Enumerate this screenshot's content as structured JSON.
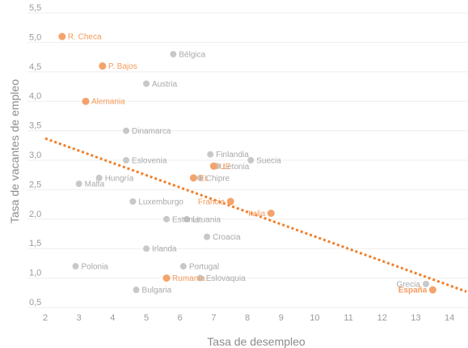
{
  "chart_data": {
    "type": "scatter",
    "xlabel": "Tasa de desempleo",
    "ylabel": "Tasa de vacantes de empleo",
    "xlim": [
      2,
      14.5
    ],
    "ylim": [
      0.5,
      5.5
    ],
    "x_ticks": [
      "2",
      "3",
      "4",
      "5",
      "6",
      "7",
      "8",
      "9",
      "10",
      "11",
      "12",
      "13",
      "14"
    ],
    "y_ticks": [
      "0,5",
      "1,0",
      "1,5",
      "2,0",
      "2,5",
      "3,0",
      "3,5",
      "4,0",
      "4,5",
      "5,0",
      "5,5"
    ],
    "y_tick_values": [
      0.5,
      1.0,
      1.5,
      2.0,
      2.5,
      3.0,
      3.5,
      4.0,
      4.5,
      5.0,
      5.5
    ],
    "grid": true,
    "colors": {
      "highlight": "#f4a36b",
      "other": "#c8c8c8",
      "trend": "#f07f2a",
      "highlight_text": "#f49a5c",
      "other_text": "#a9a9a9"
    },
    "trendline": {
      "x": [
        2,
        14.5
      ],
      "y": [
        3.37,
        0.77
      ]
    },
    "points": [
      {
        "name": "R. Checa",
        "x": 2.5,
        "y": 5.1,
        "highlight": true
      },
      {
        "name": "P. Bajos",
        "x": 3.7,
        "y": 4.6,
        "highlight": true
      },
      {
        "name": "Alemania",
        "x": 3.2,
        "y": 4.0,
        "highlight": true
      },
      {
        "name": "Bélgica",
        "x": 5.8,
        "y": 4.8,
        "highlight": false
      },
      {
        "name": "Austria",
        "x": 5.0,
        "y": 4.3,
        "highlight": false
      },
      {
        "name": "Dinamarca",
        "x": 4.4,
        "y": 3.5,
        "highlight": false
      },
      {
        "name": "Eslovenia",
        "x": 4.4,
        "y": 3.0,
        "highlight": false
      },
      {
        "name": "Hungría",
        "x": 3.6,
        "y": 2.7,
        "highlight": false
      },
      {
        "name": "Malta",
        "x": 3.0,
        "y": 2.6,
        "highlight": false
      },
      {
        "name": "Luxemburgo",
        "x": 4.6,
        "y": 2.3,
        "highlight": false
      },
      {
        "name": "Estonia",
        "x": 5.6,
        "y": 2.0,
        "highlight": false
      },
      {
        "name": "Lituania",
        "x": 6.2,
        "y": 2.0,
        "highlight": false
      },
      {
        "name": "Irlanda",
        "x": 5.0,
        "y": 1.5,
        "highlight": false
      },
      {
        "name": "Polonia",
        "x": 2.9,
        "y": 1.2,
        "highlight": false
      },
      {
        "name": "Portugal",
        "x": 6.1,
        "y": 1.2,
        "highlight": false
      },
      {
        "name": "Rumanía",
        "x": 5.6,
        "y": 1.0,
        "highlight": true
      },
      {
        "name": "Eslovaquia",
        "x": 6.6,
        "y": 1.0,
        "highlight": false
      },
      {
        "name": "Bulgaria",
        "x": 4.7,
        "y": 0.8,
        "highlight": false
      },
      {
        "name": "Croacia",
        "x": 6.8,
        "y": 1.7,
        "highlight": false
      },
      {
        "name": "Finlandia",
        "x": 6.9,
        "y": 3.1,
        "highlight": false
      },
      {
        "name": "Suecia",
        "x": 8.1,
        "y": 3.0,
        "highlight": false
      },
      {
        "name": "Letonia",
        "x": 7.1,
        "y": 2.9,
        "highlight": false
      },
      {
        "name": "UE",
        "x": 7.0,
        "y": 2.9,
        "highlight": true
      },
      {
        "name": "Chipre",
        "x": 6.6,
        "y": 2.7,
        "highlight": false
      },
      {
        "name": "EL",
        "x": 6.4,
        "y": 2.7,
        "highlight": true
      },
      {
        "name": "Francia",
        "x": 7.5,
        "y": 2.3,
        "highlight": true
      },
      {
        "name": "Italia",
        "x": 8.7,
        "y": 2.1,
        "highlight": true
      },
      {
        "name": "Grecia",
        "x": 13.3,
        "y": 0.9,
        "highlight": false
      },
      {
        "name": "España",
        "x": 13.5,
        "y": 0.8,
        "highlight": true
      }
    ]
  }
}
